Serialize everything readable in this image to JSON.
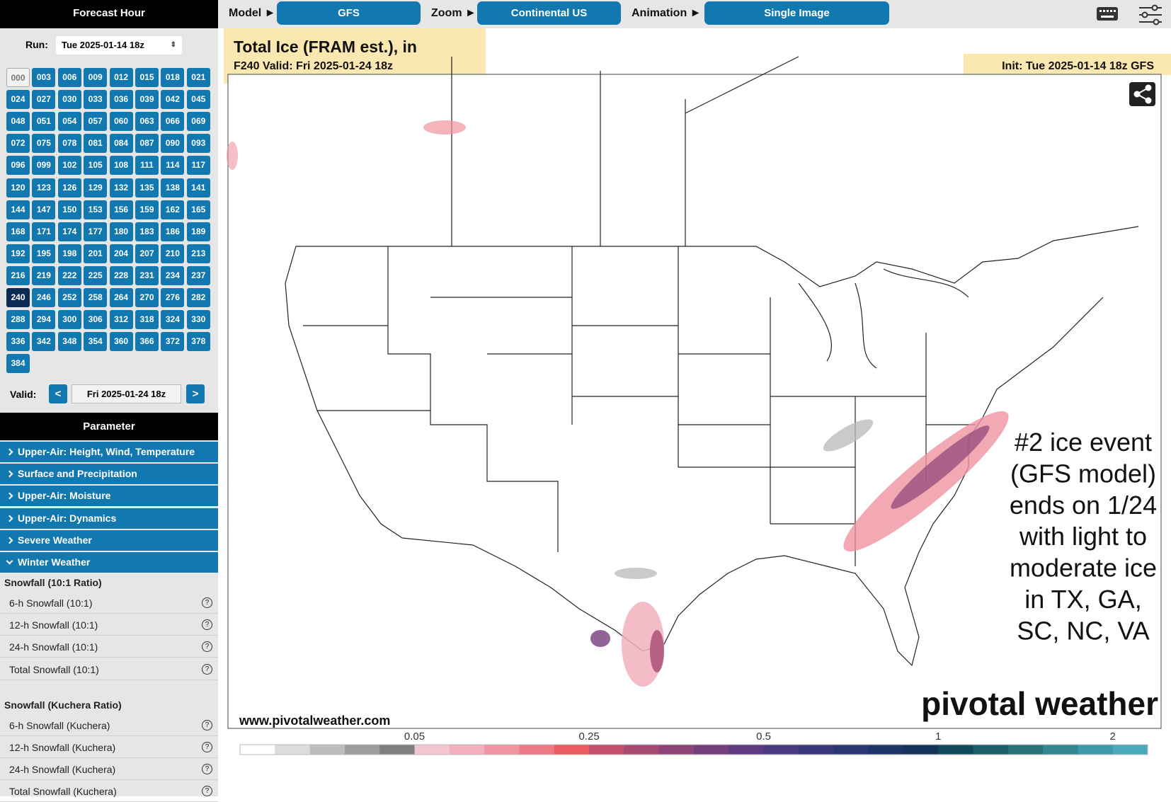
{
  "header": {
    "forecast_hour": "Forecast Hour",
    "model_label": "Model ►",
    "model": "GFS",
    "zoom_label": "Zoom ►",
    "zoom": "Continental US",
    "animation_label": "Animation ►",
    "animation": "Single Image"
  },
  "sidebar": {
    "run_label": "Run:",
    "run": "Tue 2025-01-14 18z",
    "hours": [
      "000",
      "003",
      "006",
      "009",
      "012",
      "015",
      "018",
      "021",
      "024",
      "027",
      "030",
      "033",
      "036",
      "039",
      "042",
      "045",
      "048",
      "051",
      "054",
      "057",
      "060",
      "063",
      "066",
      "069",
      "072",
      "075",
      "078",
      "081",
      "084",
      "087",
      "090",
      "093",
      "096",
      "099",
      "102",
      "105",
      "108",
      "111",
      "114",
      "117",
      "120",
      "123",
      "126",
      "129",
      "132",
      "135",
      "138",
      "141",
      "144",
      "147",
      "150",
      "153",
      "156",
      "159",
      "162",
      "165",
      "168",
      "171",
      "174",
      "177",
      "180",
      "183",
      "186",
      "189",
      "192",
      "195",
      "198",
      "201",
      "204",
      "207",
      "210",
      "213",
      "216",
      "219",
      "222",
      "225",
      "228",
      "231",
      "234",
      "237",
      "240",
      "246",
      "252",
      "258",
      "264",
      "270",
      "276",
      "282",
      "288",
      "294",
      "300",
      "306",
      "312",
      "318",
      "324",
      "330",
      "336",
      "342",
      "348",
      "354",
      "360",
      "366",
      "372",
      "378",
      "384"
    ],
    "current_hour": "240",
    "valid_label": "Valid:",
    "prev": "<",
    "valid": "Fri 2025-01-24 18z",
    "next": ">"
  },
  "parameters": {
    "title": "Parameter",
    "categories": [
      "Upper-Air: Height, Wind, Temperature",
      "Surface and Precipitation",
      "Upper-Air: Moisture",
      "Upper-Air: Dynamics",
      "Severe Weather",
      "Winter Weather"
    ],
    "groups": [
      {
        "title": "Snowfall (10:1 Ratio)",
        "items": [
          "6-h Snowfall (10:1)",
          "12-h Snowfall (10:1)",
          "24-h Snowfall (10:1)",
          "Total Snowfall (10:1)"
        ]
      },
      {
        "title": "Snowfall (Kuchera Ratio)",
        "items": [
          "6-h Snowfall (Kuchera)",
          "12-h Snowfall (Kuchera)",
          "24-h Snowfall (Kuchera)",
          "Total Snowfall (Kuchera)"
        ]
      }
    ],
    "help": "?"
  },
  "map": {
    "title": "Total Ice (FRAM est.), in",
    "valid": "F240 Valid: Fri 2025-01-24 18z",
    "init": "Init: Tue 2025-01-14 18z GFS",
    "credit": "www.pivotalweather.com",
    "logo": "pivotal weather",
    "annotation": [
      "#2 ice event",
      "(GFS model)",
      "ends on 1/24",
      "with light to",
      "moderate ice",
      "in TX, GA,",
      "SC, NC, VA"
    ],
    "colorbar": {
      "ticks": [
        0.05,
        0.25,
        0.5,
        1,
        2
      ],
      "colors": [
        "#ffffff",
        "#dcdcdc",
        "#bdbdbd",
        "#9e9e9e",
        "#7f7f7f",
        "#f4c6d0",
        "#f2b0bc",
        "#ef94a0",
        "#ec7a84",
        "#e85c62",
        "#c2506a",
        "#a64a72",
        "#8c4478",
        "#743e7c",
        "#5e3a80",
        "#4a3a80",
        "#38387a",
        "#2a3672",
        "#1e3466",
        "#14325a",
        "#10485c",
        "#1a5e6a",
        "#267278",
        "#328690",
        "#3e9aa8",
        "#4aa8bc"
      ]
    }
  }
}
